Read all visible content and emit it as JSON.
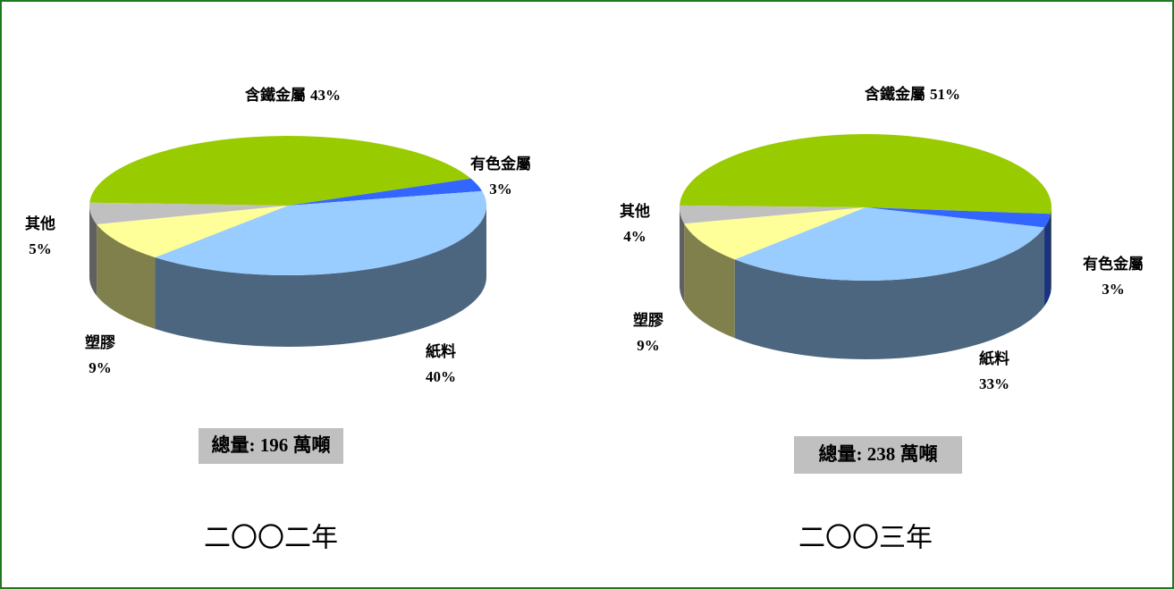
{
  "chart_data": [
    {
      "type": "pie3d",
      "categories": [
        "含鐵金屬",
        "有色金屬",
        "紙料",
        "塑膠",
        "其他"
      ],
      "values": [
        43,
        3,
        40,
        9,
        5
      ],
      "value_labels": [
        "43%",
        "3%",
        "40%",
        "9%",
        "5%"
      ],
      "colors": [
        "#99cc00",
        "#3366ff",
        "#99ccff",
        "#ffff99",
        "#c0c0c0"
      ],
      "subtitle": "總量: 196 萬噸",
      "caption": "二〇〇二年"
    },
    {
      "type": "pie3d",
      "categories": [
        "含鐵金屬",
        "有色金屬",
        "紙料",
        "塑膠",
        "其他"
      ],
      "values": [
        51,
        3,
        33,
        9,
        4
      ],
      "value_labels": [
        "51%",
        "3%",
        "33%",
        "9%",
        "4%"
      ],
      "colors": [
        "#99cc00",
        "#3366ff",
        "#99ccff",
        "#ffff99",
        "#c0c0c0"
      ],
      "subtitle": "總量: 238 萬噸",
      "caption": "二〇〇三年"
    }
  ]
}
